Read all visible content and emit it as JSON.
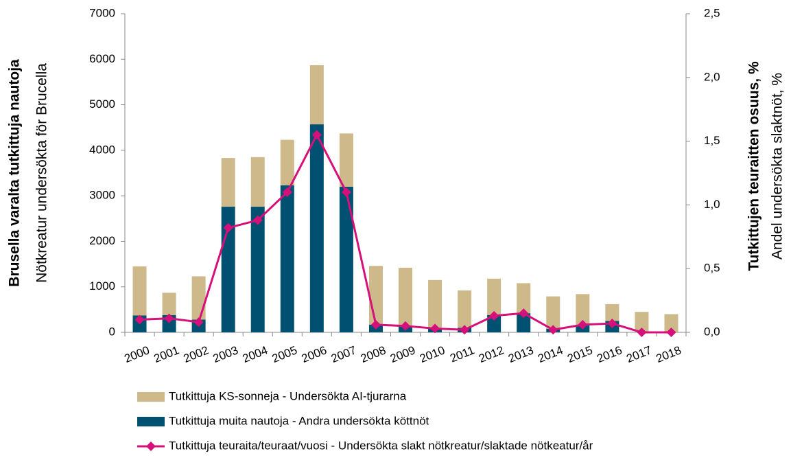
{
  "chart_data": {
    "type": "bar+line",
    "y_label_bold": "Brusella varalta tutkittuja nautoja",
    "y_label": "Nötkreatur undersökta för Brucella",
    "y2_label_bold": "Tutkittujen teuraitten osuus, %",
    "y2_label": "Andel undersökta slaktnöt, %",
    "categories": [
      "2000",
      "2001",
      "2002",
      "2003",
      "2004",
      "2005",
      "2006",
      "2007",
      "2008",
      "2009",
      "2010",
      "2011",
      "2012",
      "2013",
      "2014",
      "2015",
      "2016",
      "2017",
      "2018"
    ],
    "series": [
      {
        "name": "Tutkittuja KS-sonneja - Undersökta AI-tjurarna",
        "type": "bar",
        "color": "#cdb98a",
        "values": [
          1080,
          490,
          950,
          1070,
          1090,
          1000,
          1300,
          1170,
          1290,
          1270,
          1050,
          820,
          800,
          660,
          710,
          690,
          370,
          450,
          400
        ]
      },
      {
        "name": "Tutkittuja muita nautoja - Andra undersökta köttnöt",
        "type": "bar",
        "color": "#005071",
        "values": [
          370,
          380,
          280,
          2760,
          2760,
          3230,
          4570,
          3200,
          170,
          150,
          100,
          100,
          380,
          420,
          80,
          150,
          250,
          0,
          0
        ]
      },
      {
        "name": "Tutkittuja teuraita/teuraat/vuosi - Undersökta slakt nötkreatur/slaktade nötkeatur/år",
        "type": "line",
        "axis": "y2",
        "color": "#d6107a",
        "values": [
          0.1,
          0.11,
          0.08,
          0.82,
          0.88,
          1.1,
          1.55,
          1.1,
          0.06,
          0.05,
          0.03,
          0.02,
          0.13,
          0.15,
          0.02,
          0.06,
          0.07,
          0.0,
          0.0
        ]
      }
    ],
    "ylim": [
      0,
      7000
    ],
    "yticks": [
      0,
      1000,
      2000,
      3000,
      4000,
      5000,
      6000,
      7000
    ],
    "y2lim": [
      0,
      2.5
    ],
    "y2ticks": [
      {
        "value": 0,
        "label": "0,0"
      },
      {
        "value": 0.5,
        "label": "0,5"
      },
      {
        "value": 1,
        "label": "1,0"
      },
      {
        "value": 1.5,
        "label": "1,5"
      },
      {
        "value": 2,
        "label": "2,0"
      },
      {
        "value": 2.5,
        "label": "2,5"
      }
    ]
  }
}
